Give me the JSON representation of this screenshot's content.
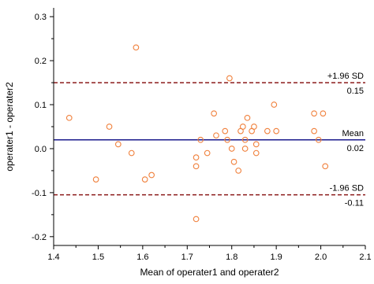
{
  "chart_data": {
    "type": "scatter",
    "title": "",
    "xlabel": "Mean of operater1 and operater2",
    "ylabel": "operater1 - operater2",
    "xlim": [
      1.4,
      2.1
    ],
    "ylim": [
      -0.22,
      0.32
    ],
    "xticks": [
      "1.4",
      "1.5",
      "1.6",
      "1.7",
      "1.8",
      "1.9",
      "2.0",
      "2.1"
    ],
    "yticks": [
      "-0.2",
      "-0.1",
      "0.0",
      "0.1",
      "0.2",
      "0.3"
    ],
    "xtick_values": [
      1.4,
      1.5,
      1.6,
      1.7,
      1.8,
      1.9,
      2.0,
      2.1
    ],
    "ytick_values": [
      -0.2,
      -0.1,
      0.0,
      0.1,
      0.2,
      0.3
    ],
    "grid": false,
    "points": [
      {
        "x": 1.435,
        "y": 0.07
      },
      {
        "x": 1.495,
        "y": -0.07
      },
      {
        "x": 1.525,
        "y": 0.05
      },
      {
        "x": 1.545,
        "y": 0.01
      },
      {
        "x": 1.575,
        "y": -0.01
      },
      {
        "x": 1.585,
        "y": 0.23
      },
      {
        "x": 1.605,
        "y": -0.07
      },
      {
        "x": 1.62,
        "y": -0.06
      },
      {
        "x": 1.72,
        "y": -0.02
      },
      {
        "x": 1.72,
        "y": -0.04
      },
      {
        "x": 1.72,
        "y": -0.16
      },
      {
        "x": 1.73,
        "y": 0.02
      },
      {
        "x": 1.745,
        "y": -0.01
      },
      {
        "x": 1.76,
        "y": 0.08
      },
      {
        "x": 1.765,
        "y": 0.03
      },
      {
        "x": 1.785,
        "y": 0.04
      },
      {
        "x": 1.79,
        "y": 0.02
      },
      {
        "x": 1.795,
        "y": 0.16
      },
      {
        "x": 1.8,
        "y": 0.0
      },
      {
        "x": 1.805,
        "y": -0.03
      },
      {
        "x": 1.815,
        "y": -0.05
      },
      {
        "x": 1.82,
        "y": 0.04
      },
      {
        "x": 1.825,
        "y": 0.05
      },
      {
        "x": 1.83,
        "y": 0.02
      },
      {
        "x": 1.83,
        "y": 0.0
      },
      {
        "x": 1.835,
        "y": 0.07
      },
      {
        "x": 1.845,
        "y": 0.04
      },
      {
        "x": 1.85,
        "y": 0.05
      },
      {
        "x": 1.855,
        "y": 0.01
      },
      {
        "x": 1.855,
        "y": -0.01
      },
      {
        "x": 1.88,
        "y": 0.04
      },
      {
        "x": 1.895,
        "y": 0.1
      },
      {
        "x": 1.9,
        "y": 0.04
      },
      {
        "x": 1.985,
        "y": 0.08
      },
      {
        "x": 1.985,
        "y": 0.04
      },
      {
        "x": 1.995,
        "y": 0.02
      },
      {
        "x": 2.005,
        "y": 0.08
      },
      {
        "x": 2.01,
        "y": -0.04
      }
    ],
    "reference_lines": [
      {
        "label": "+1.96 SD",
        "value": 0.15,
        "value_label": "0.15",
        "color": "#8b1a1a",
        "style": "dashed"
      },
      {
        "label": "Mean",
        "value": 0.02,
        "value_label": "0.02",
        "color": "#1a1a8c",
        "style": "solid"
      },
      {
        "label": "-1.96 SD",
        "value": -0.105,
        "value_label": "-0.11",
        "color": "#8b1a1a",
        "style": "dashed"
      }
    ],
    "marker_color": "#f0803c"
  }
}
